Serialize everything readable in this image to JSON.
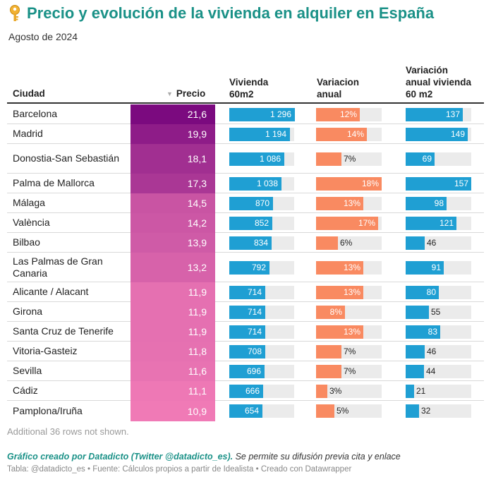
{
  "header": {
    "title": "Precio y evolución de la vivienda en alquiler en España",
    "subtitle": "Agosto de 2024",
    "icon": "key-icon"
  },
  "columns": {
    "ciudad": "Ciudad",
    "precio": "Precio",
    "vivienda_l1": "Vivienda",
    "vivienda_l2": "60m2",
    "variacion_l1": "Variacion",
    "variacion_l2": "anual",
    "vav_l1": "Variación",
    "vav_l2": "anual vivienda",
    "vav_l3": "60 m2"
  },
  "colors": {
    "title": "#1a9187",
    "bar_vivienda": "#1f9fd3",
    "bar_variacion": "#f98a61",
    "bar_track": "#ebebeb",
    "heat_high": "#7b0a7f",
    "heat_low": "#f07ab6"
  },
  "chart_data": {
    "type": "table",
    "title": "Precio y evolución de la vivienda en alquiler en España",
    "subtitle": "Agosto de 2024",
    "columns": [
      "Ciudad",
      "Precio",
      "Vivienda 60m2",
      "Variacion anual",
      "Variación anual vivienda 60 m2"
    ],
    "sort": "Precio descending",
    "scales": {
      "precio": [
        10.9,
        21.6
      ],
      "vivienda": [
        0,
        1296
      ],
      "variacion": [
        0,
        18
      ],
      "variacion_vivienda": [
        0,
        157
      ]
    },
    "rows": [
      {
        "ciudad": "Barcelona",
        "precio": "21,6",
        "precio_value": 21.6,
        "vivienda": "1 296",
        "vivienda_value": 1296,
        "variacion": "12%",
        "variacion_value": 12,
        "var_viv": "137",
        "var_viv_value": 137
      },
      {
        "ciudad": "Madrid",
        "precio": "19,9",
        "precio_value": 19.9,
        "vivienda": "1 194",
        "vivienda_value": 1194,
        "variacion": "14%",
        "variacion_value": 14,
        "var_viv": "149",
        "var_viv_value": 149
      },
      {
        "ciudad": "Donostia-San Sebastián",
        "precio": "18,1",
        "precio_value": 18.1,
        "vivienda": "1 086",
        "vivienda_value": 1086,
        "variacion": "7%",
        "variacion_value": 7,
        "var_viv": "69",
        "var_viv_value": 69
      },
      {
        "ciudad": "Palma de Mallorca",
        "precio": "17,3",
        "precio_value": 17.3,
        "vivienda": "1 038",
        "vivienda_value": 1038,
        "variacion": "18%",
        "variacion_value": 18,
        "var_viv": "157",
        "var_viv_value": 157
      },
      {
        "ciudad": "Málaga",
        "precio": "14,5",
        "precio_value": 14.5,
        "vivienda": "870",
        "vivienda_value": 870,
        "variacion": "13%",
        "variacion_value": 13,
        "var_viv": "98",
        "var_viv_value": 98
      },
      {
        "ciudad": "València",
        "precio": "14,2",
        "precio_value": 14.2,
        "vivienda": "852",
        "vivienda_value": 852,
        "variacion": "17%",
        "variacion_value": 17,
        "var_viv": "121",
        "var_viv_value": 121
      },
      {
        "ciudad": "Bilbao",
        "precio": "13,9",
        "precio_value": 13.9,
        "vivienda": "834",
        "vivienda_value": 834,
        "variacion": "6%",
        "variacion_value": 6,
        "var_viv": "46",
        "var_viv_value": 46
      },
      {
        "ciudad": "Las Palmas de Gran Canaria",
        "precio": "13,2",
        "precio_value": 13.2,
        "vivienda": "792",
        "vivienda_value": 792,
        "variacion": "13%",
        "variacion_value": 13,
        "var_viv": "91",
        "var_viv_value": 91
      },
      {
        "ciudad": "Alicante / Alacant",
        "precio": "11,9",
        "precio_value": 11.9,
        "vivienda": "714",
        "vivienda_value": 714,
        "variacion": "13%",
        "variacion_value": 13,
        "var_viv": "80",
        "var_viv_value": 80
      },
      {
        "ciudad": "Girona",
        "precio": "11,9",
        "precio_value": 11.9,
        "vivienda": "714",
        "vivienda_value": 714,
        "variacion": "8%",
        "variacion_value": 8,
        "var_viv": "55",
        "var_viv_value": 55
      },
      {
        "ciudad": "Santa Cruz de Tenerife",
        "precio": "11,9",
        "precio_value": 11.9,
        "vivienda": "714",
        "vivienda_value": 714,
        "variacion": "13%",
        "variacion_value": 13,
        "var_viv": "83",
        "var_viv_value": 83
      },
      {
        "ciudad": "Vitoria-Gasteiz",
        "precio": "11,8",
        "precio_value": 11.8,
        "vivienda": "708",
        "vivienda_value": 708,
        "variacion": "7%",
        "variacion_value": 7,
        "var_viv": "46",
        "var_viv_value": 46
      },
      {
        "ciudad": "Sevilla",
        "precio": "11,6",
        "precio_value": 11.6,
        "vivienda": "696",
        "vivienda_value": 696,
        "variacion": "7%",
        "variacion_value": 7,
        "var_viv": "44",
        "var_viv_value": 44
      },
      {
        "ciudad": "Cádiz",
        "precio": "11,1",
        "precio_value": 11.1,
        "vivienda": "666",
        "vivienda_value": 666,
        "variacion": "3%",
        "variacion_value": 3,
        "var_viv": "21",
        "var_viv_value": 21
      },
      {
        "ciudad": "Pamplona/Iruña",
        "precio": "10,9",
        "precio_value": 10.9,
        "vivienda": "654",
        "vivienda_value": 654,
        "variacion": "5%",
        "variacion_value": 5,
        "var_viv": "32",
        "var_viv_value": 32
      }
    ]
  },
  "footer": {
    "more_rows": "Additional 36 rows not shown.",
    "credit_strong": "Gráfico creado por Datadicto (Twitter @datadicto_es).",
    "credit_rest": " Se permite su difusión previa cita y enlace",
    "source": "Tabla: @datadicto_es • Fuente: Cálculos propios a partir de Idealista • Creado con Datawrapper"
  }
}
